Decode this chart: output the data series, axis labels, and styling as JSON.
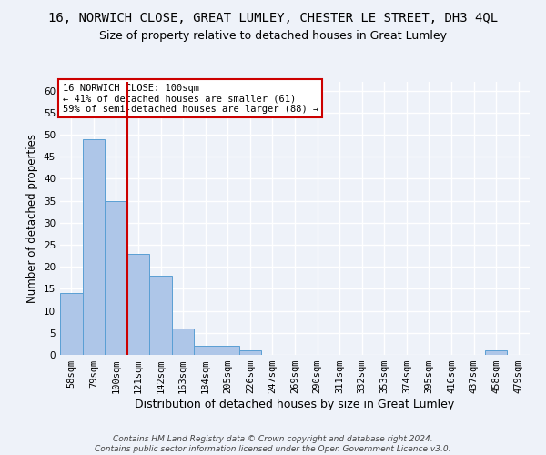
{
  "title": "16, NORWICH CLOSE, GREAT LUMLEY, CHESTER LE STREET, DH3 4QL",
  "subtitle": "Size of property relative to detached houses in Great Lumley",
  "xlabel": "Distribution of detached houses by size in Great Lumley",
  "ylabel": "Number of detached properties",
  "categories": [
    "58sqm",
    "79sqm",
    "100sqm",
    "121sqm",
    "142sqm",
    "163sqm",
    "184sqm",
    "205sqm",
    "226sqm",
    "247sqm",
    "269sqm",
    "290sqm",
    "311sqm",
    "332sqm",
    "353sqm",
    "374sqm",
    "395sqm",
    "416sqm",
    "437sqm",
    "458sqm",
    "479sqm"
  ],
  "values": [
    14,
    49,
    35,
    23,
    18,
    6,
    2,
    2,
    1,
    0,
    0,
    0,
    0,
    0,
    0,
    0,
    0,
    0,
    0,
    1,
    0
  ],
  "bar_color": "#aec6e8",
  "bar_edge_color": "#5a9fd4",
  "red_line_x": 2,
  "ylim": [
    0,
    62
  ],
  "yticks": [
    0,
    5,
    10,
    15,
    20,
    25,
    30,
    35,
    40,
    45,
    50,
    55,
    60
  ],
  "annotation_lines": [
    "16 NORWICH CLOSE: 100sqm",
    "← 41% of detached houses are smaller (61)",
    "59% of semi-detached houses are larger (88) →"
  ],
  "annotation_box_color": "#ffffff",
  "annotation_box_edge": "#cc0000",
  "footer_lines": [
    "Contains HM Land Registry data © Crown copyright and database right 2024.",
    "Contains public sector information licensed under the Open Government Licence v3.0."
  ],
  "background_color": "#eef2f9",
  "grid_color": "#ffffff",
  "title_fontsize": 10,
  "subtitle_fontsize": 9,
  "ylabel_fontsize": 8.5,
  "xlabel_fontsize": 9,
  "tick_fontsize": 7.5,
  "ann_fontsize": 7.5,
  "footer_fontsize": 6.5
}
